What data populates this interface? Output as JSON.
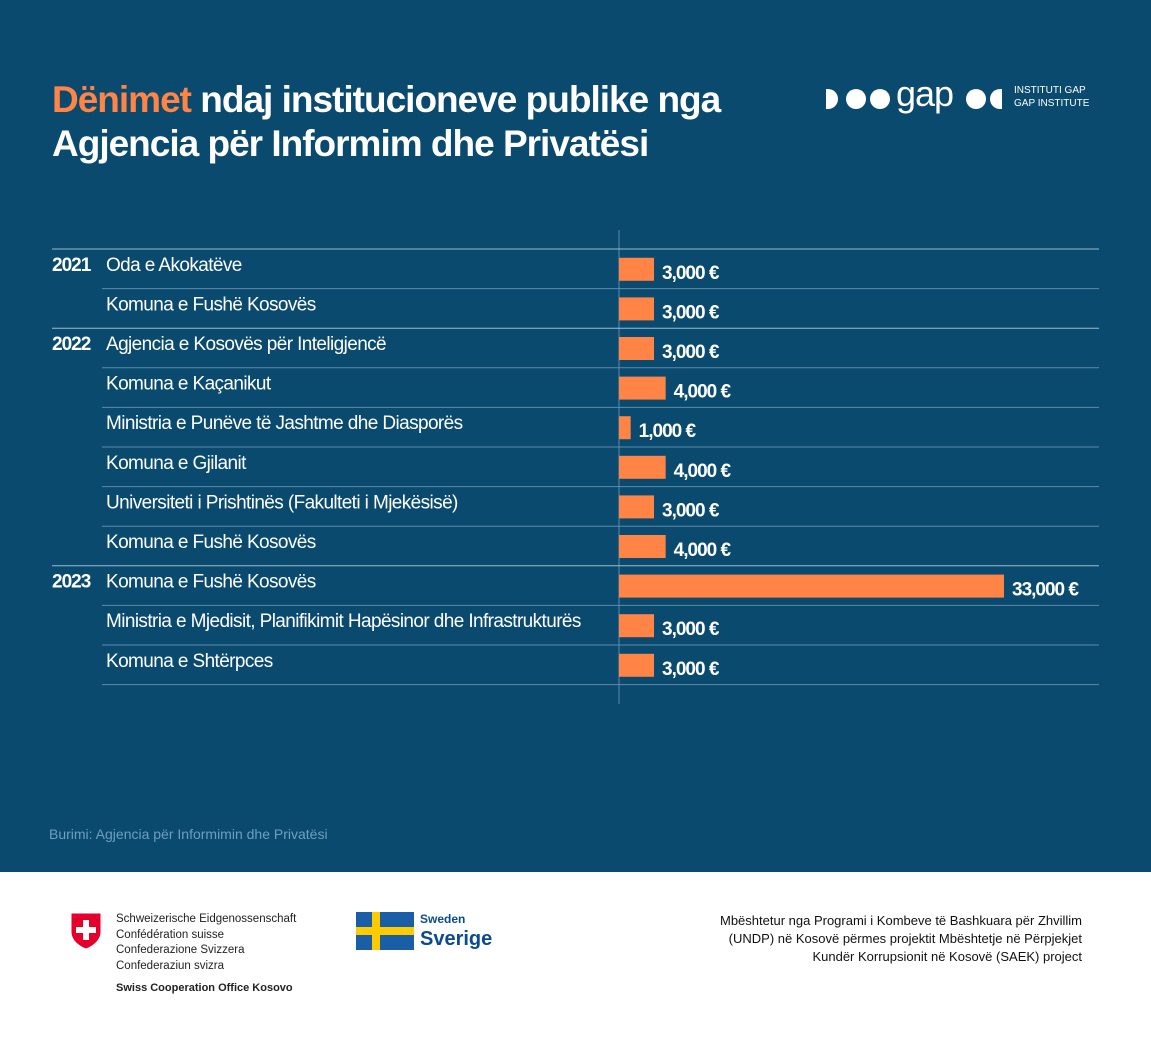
{
  "header": {
    "title_highlight": "Dënimet",
    "title_rest": " ndaj institucioneve publike nga Agjencia për Informim dhe Privatësi",
    "logo_word": "gap",
    "logo_sub_1": "INSTITUTI GAP",
    "logo_sub_2": "GAP INSTITUTE"
  },
  "colors": {
    "background": "#0a4a6e",
    "bar": "#ff8445",
    "highlight": "#ff8445"
  },
  "chart_data": {
    "type": "bar",
    "orientation": "horizontal",
    "title": "Dënimet ndaj institucioneve publike nga Agjencia për Informim dhe Privatësi",
    "xlim": [
      0,
      33000
    ],
    "grid": false,
    "rows": [
      {
        "year": "2021",
        "institution": "Oda e Akokatëve",
        "value": 3000,
        "label": "3,000 €"
      },
      {
        "year": "",
        "institution": "Komuna e Fushë Kosovës",
        "value": 3000,
        "label": "3,000 €"
      },
      {
        "year": "2022",
        "institution": "Agjencia e Kosovës për Inteligjencë",
        "value": 3000,
        "label": "3,000 €"
      },
      {
        "year": "",
        "institution": "Komuna e Kaçanikut",
        "value": 4000,
        "label": "4,000 €"
      },
      {
        "year": "",
        "institution": "Ministria e Punëve të Jashtme dhe Diasporës",
        "value": 1000,
        "label": "1,000 €"
      },
      {
        "year": "",
        "institution": "Komuna e Gjilanit",
        "value": 4000,
        "label": "4,000 €"
      },
      {
        "year": "",
        "institution": "Universiteti i Prishtinës (Fakulteti i Mjekësisë)",
        "value": 3000,
        "label": "3,000 €"
      },
      {
        "year": "",
        "institution": "Komuna e Fushë Kosovës",
        "value": 4000,
        "label": "4,000 €"
      },
      {
        "year": "2023",
        "institution": "Komuna e Fushë Kosovës",
        "value": 33000,
        "label": "33,000 €"
      },
      {
        "year": "",
        "institution": "Ministria e Mjedisit, Planifikimit Hapësinor dhe Infrastrukturës",
        "value": 3000,
        "label": "3,000 €"
      },
      {
        "year": "",
        "institution": "Komuna  e Shtërpces",
        "value": 3000,
        "label": "3,000 €"
      }
    ]
  },
  "source": "Burimi: Agjencia për Informimin dhe Privatësi",
  "footer": {
    "swiss_lines": "Schweizerische Eidgenossenschaft\nConfédération suisse\nConfederazione Svizzera\nConfederaziun svizra",
    "swiss_office": "Swiss Cooperation Office Kosovo",
    "sweden_small": "Sweden",
    "sweden_big": "Sverige",
    "support_text": "Mbështetur nga Programi i Kombeve të Bashkuara për Zhvillim (UNDP) në Kosovë përmes projektit Mbështetje në Përpjekjet Kundër Korrupsionit në Kosovë (SAEK) project"
  }
}
